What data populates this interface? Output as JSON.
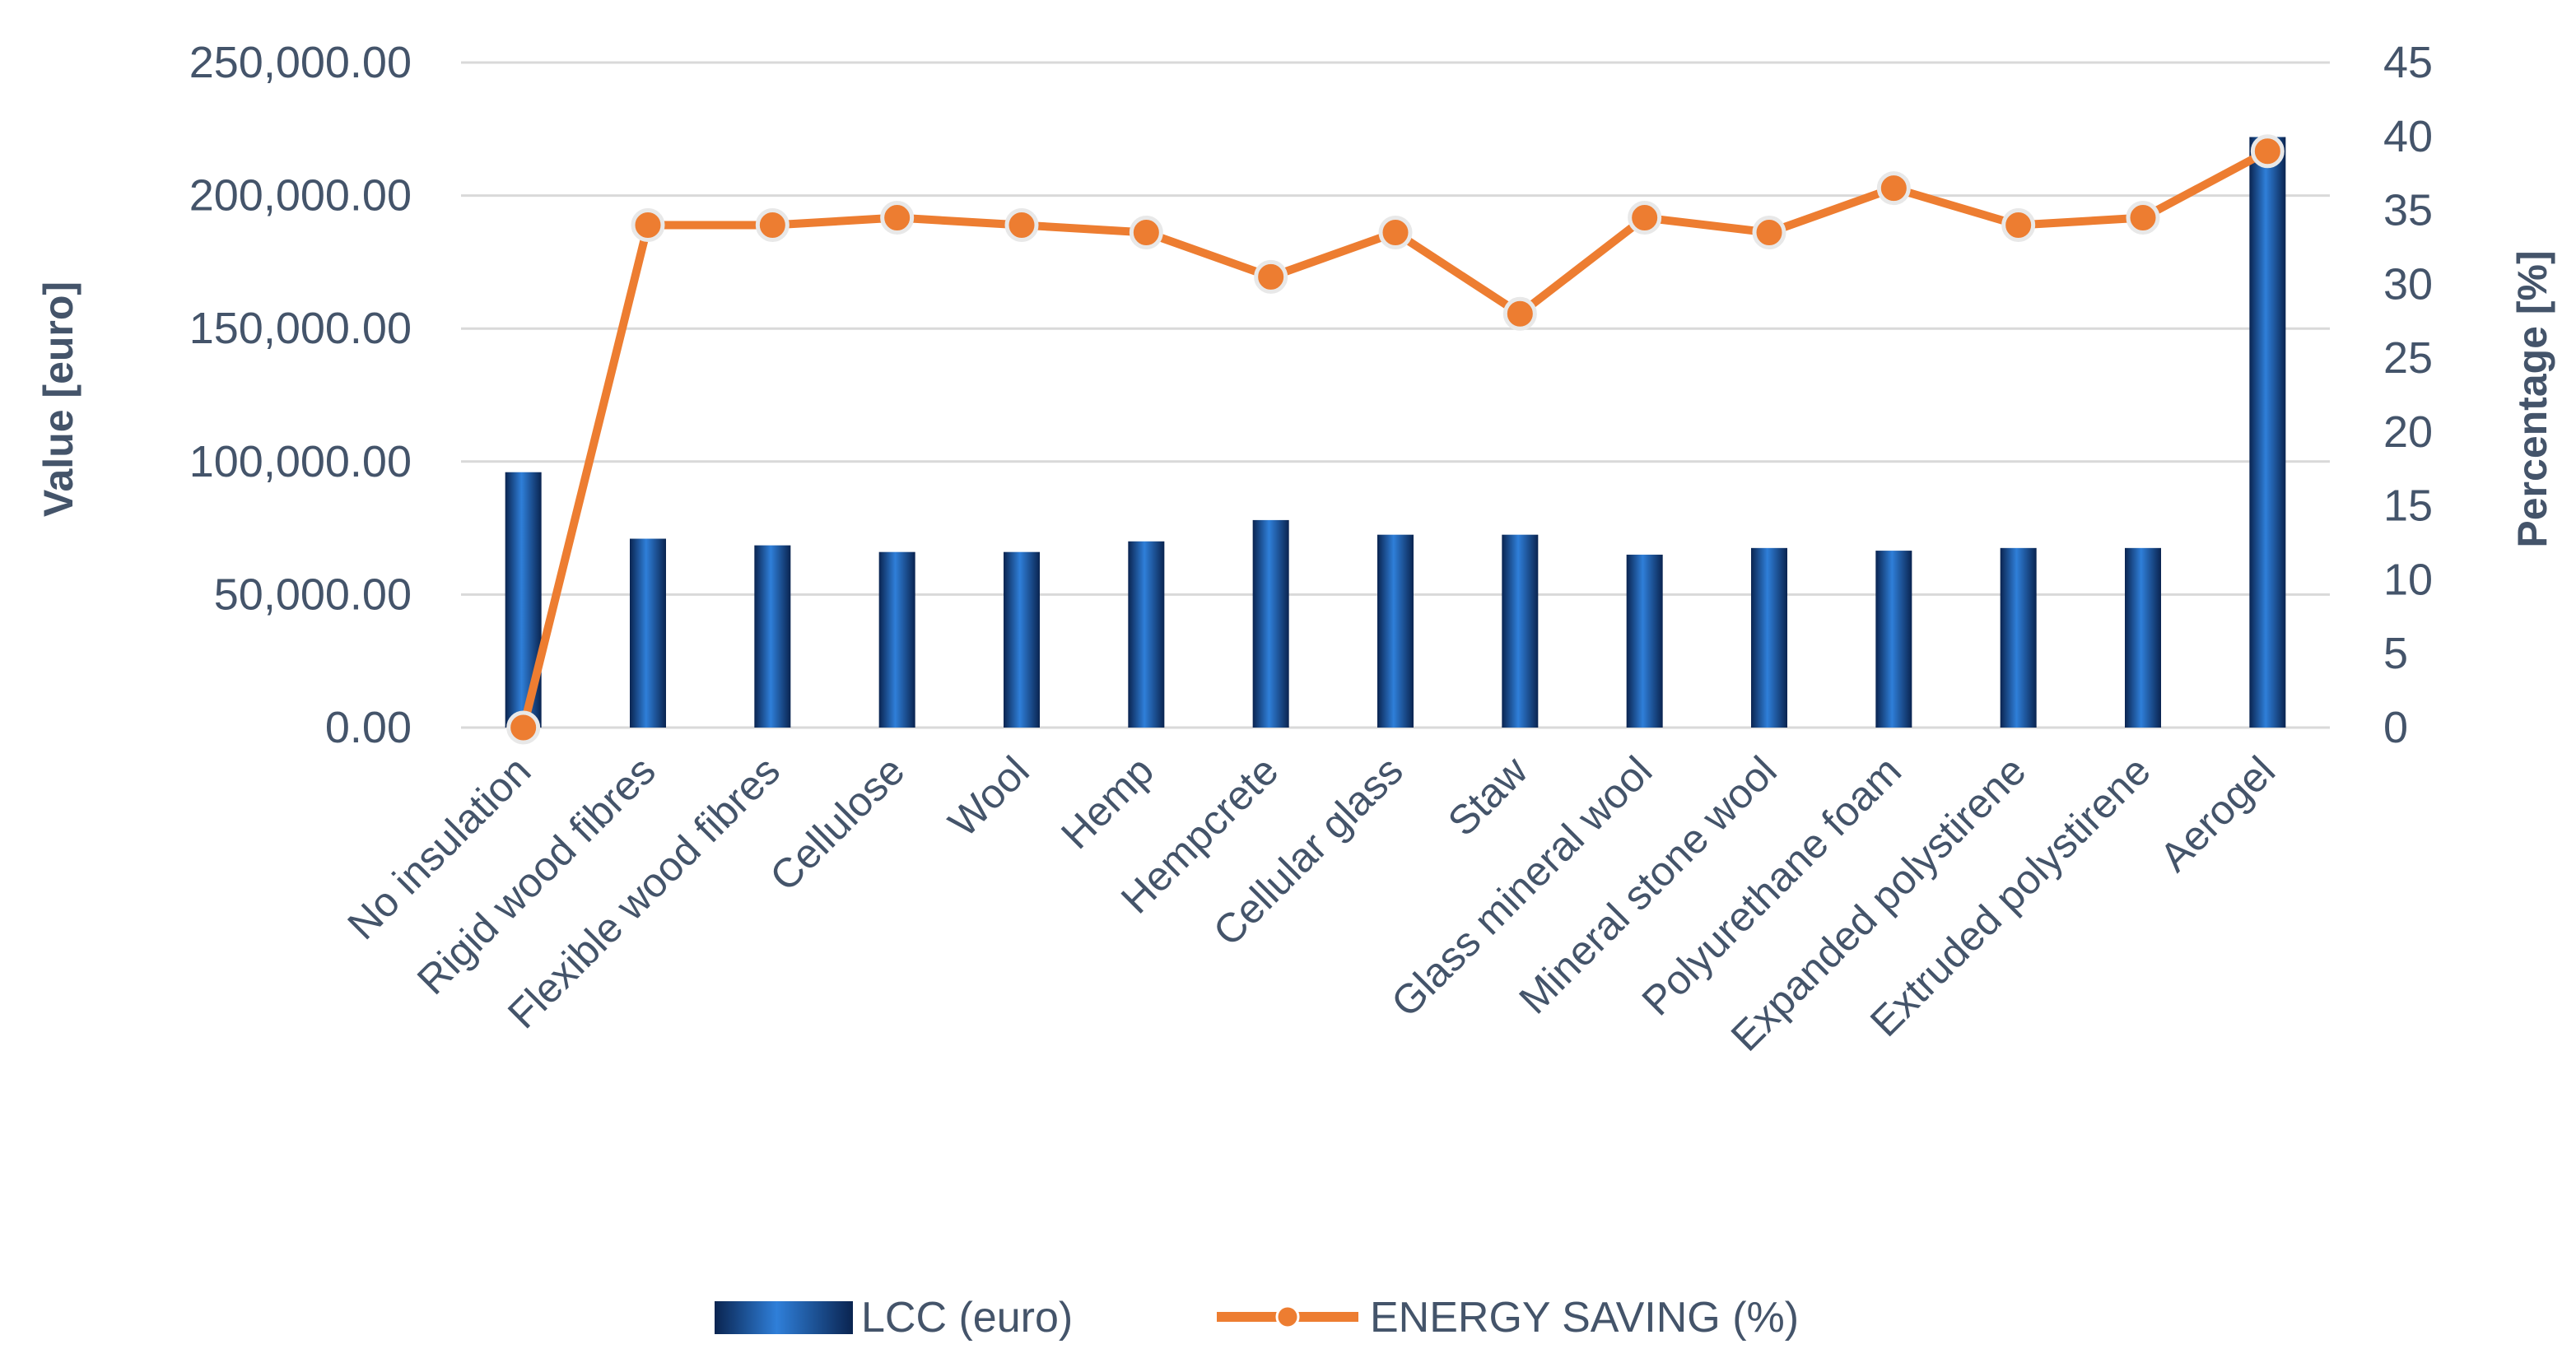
{
  "chart_data": {
    "type": "bar",
    "title": "",
    "categories": [
      "No insulation",
      "Rigid wood fibres",
      "Flexible wood fibres",
      "Cellulose",
      "Wool",
      "Hemp",
      "Hempcrete",
      "Cellular glass",
      "Staw",
      "Glass mineral wool",
      "Mineral stone wool",
      "Polyurethane foam",
      "Expanded polystirene",
      "Extruded polystirene",
      "Aerogel"
    ],
    "series": [
      {
        "name": "LCC (euro)",
        "type": "bar",
        "axis": "left",
        "color": "#1f5ba8",
        "values": [
          96000,
          71000,
          68500,
          66000,
          66000,
          70000,
          78000,
          72500,
          72500,
          65000,
          67500,
          66500,
          67500,
          67500,
          222000
        ]
      },
      {
        "name": "ENERGY SAVING (%)",
        "type": "line",
        "axis": "right",
        "color": "#ed7d31",
        "values": [
          0,
          34,
          34,
          34.5,
          34,
          33.5,
          30.5,
          33.5,
          28,
          34.5,
          33.5,
          36.5,
          34,
          34.5,
          39
        ]
      }
    ],
    "ylabel": "Value [euro]",
    "ylabel_right": "Percentage [%]",
    "ylim": [
      0,
      250000
    ],
    "ylim_right": [
      0,
      45
    ],
    "yticks": [
      "0.00",
      "50,000.00",
      "100,000.00",
      "150,000.00",
      "200,000.00",
      "250,000.00"
    ],
    "yticks_right": [
      "0",
      "5",
      "10",
      "15",
      "20",
      "25",
      "30",
      "35",
      "40",
      "45"
    ],
    "grid": true,
    "legend_position": "bottom"
  }
}
